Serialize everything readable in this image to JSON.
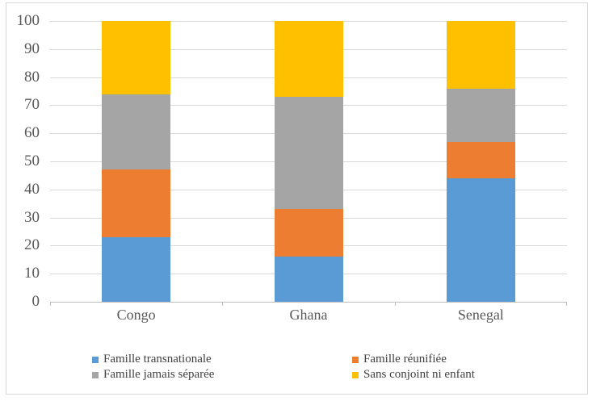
{
  "chart_data": {
    "type": "bar",
    "stacked": true,
    "orientation": "vertical",
    "title": "",
    "xlabel": "",
    "ylabel": "",
    "categories": [
      "Congo",
      "Ghana",
      "Senegal"
    ],
    "series": [
      {
        "name": "Famille transnationale",
        "color": "#5B9BD5",
        "values": [
          23,
          16,
          44
        ]
      },
      {
        "name": "Famille réunifiée",
        "color": "#ED7D31",
        "values": [
          24,
          17,
          13
        ]
      },
      {
        "name": "Famille jamais séparée",
        "color": "#A5A5A5",
        "values": [
          27,
          40,
          19
        ]
      },
      {
        "name": "Sans conjoint ni enfant",
        "color": "#FFC000",
        "values": [
          26,
          27,
          24
        ]
      }
    ],
    "ylim": [
      0,
      100
    ],
    "yticks": [
      0,
      10,
      20,
      30,
      40,
      50,
      60,
      70,
      80,
      90,
      100
    ],
    "grid": true,
    "legend_position": "bottom",
    "legend_columns": 2
  },
  "style": {
    "gridline_color": "#d9d9d9",
    "axis_line_color": "#bfbfbf",
    "axis_label_color": "#595959",
    "legend_text_color": "#3f3f3f",
    "background_color": "#ffffff",
    "border_color": "#d9d9d9"
  }
}
